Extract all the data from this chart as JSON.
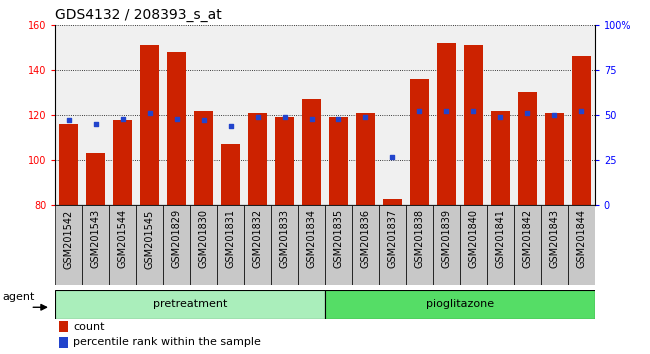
{
  "title": "GDS4132 / 208393_s_at",
  "samples": [
    "GSM201542",
    "GSM201543",
    "GSM201544",
    "GSM201545",
    "GSM201829",
    "GSM201830",
    "GSM201831",
    "GSM201832",
    "GSM201833",
    "GSM201834",
    "GSM201835",
    "GSM201836",
    "GSM201837",
    "GSM201838",
    "GSM201839",
    "GSM201840",
    "GSM201841",
    "GSM201842",
    "GSM201843",
    "GSM201844"
  ],
  "counts": [
    116,
    103,
    118,
    151,
    148,
    122,
    107,
    121,
    119,
    127,
    119,
    121,
    83,
    136,
    152,
    151,
    122,
    130,
    121,
    146
  ],
  "percentiles": [
    47,
    45,
    48,
    51,
    48,
    47,
    44,
    49,
    49,
    48,
    48,
    49,
    27,
    52,
    52,
    52,
    49,
    51,
    50,
    52
  ],
  "pretreatment_count": 10,
  "pioglitazone_count": 10,
  "ylim_left": [
    80,
    160
  ],
  "ylim_right": [
    0,
    100
  ],
  "yticks_left": [
    80,
    100,
    120,
    140,
    160
  ],
  "yticks_right": [
    0,
    25,
    50,
    75,
    100
  ],
  "ytick_labels_right": [
    "0",
    "25",
    "50",
    "75",
    "100%"
  ],
  "bar_color": "#cc2200",
  "dot_color": "#2244cc",
  "bar_width": 0.7,
  "grid_color": "#000000",
  "plot_bg_color": "#f0f0f0",
  "xtick_bg_color": "#c8c8c8",
  "pretreat_color": "#aaeebb",
  "pioglit_color": "#55dd66",
  "agent_label": "agent",
  "pretreat_label": "pretreatment",
  "pioglit_label": "pioglitazone",
  "legend_count": "count",
  "legend_pct": "percentile rank within the sample",
  "title_fontsize": 10,
  "tick_fontsize": 7,
  "label_fontsize": 8
}
